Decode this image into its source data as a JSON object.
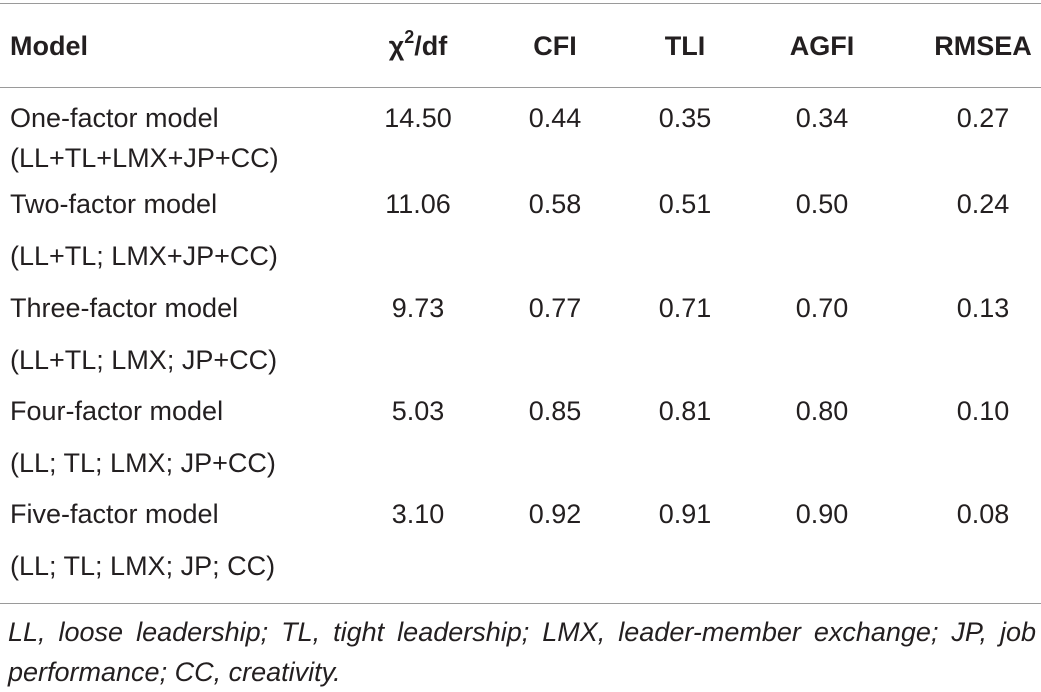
{
  "table": {
    "headers": {
      "model": "Model",
      "chi_symbol": "χ",
      "chi_exponent": "2",
      "chi_suffix": "/df",
      "cfi": "CFI",
      "tli": "TLI",
      "agfi": "AGFI",
      "rmsea": "RMSEA"
    },
    "rows": [
      {
        "model_line1": "One-factor model",
        "model_line2": "(LL+TL+LMX+JP+CC)",
        "chi_df": "14.50",
        "cfi": "0.44",
        "tli": "0.35",
        "agfi": "0.34",
        "rmsea": "0.27"
      },
      {
        "model_line1": "Two-factor model",
        "model_line2": "(LL+TL; LMX+JP+CC)",
        "chi_df": "11.06",
        "cfi": "0.58",
        "tli": "0.51",
        "agfi": "0.50",
        "rmsea": "0.24"
      },
      {
        "model_line1": "Three-factor model",
        "model_line2": "(LL+TL; LMX; JP+CC)",
        "chi_df": "9.73",
        "cfi": "0.77",
        "tli": "0.71",
        "agfi": "0.70",
        "rmsea": "0.13"
      },
      {
        "model_line1": "Four-factor model",
        "model_line2": "(LL; TL; LMX; JP+CC)",
        "chi_df": "5.03",
        "cfi": "0.85",
        "tli": "0.81",
        "agfi": "0.80",
        "rmsea": "0.10"
      },
      {
        "model_line1": "Five-factor model",
        "model_line2": "(LL; TL; LMX; JP; CC)",
        "chi_df": "3.10",
        "cfi": "0.92",
        "tli": "0.91",
        "agfi": "0.90",
        "rmsea": "0.08"
      }
    ],
    "footnote": "LL, loose leadership; TL, tight leadership; LMX, leader-member exchange; JP, job performance; CC, creativity."
  }
}
